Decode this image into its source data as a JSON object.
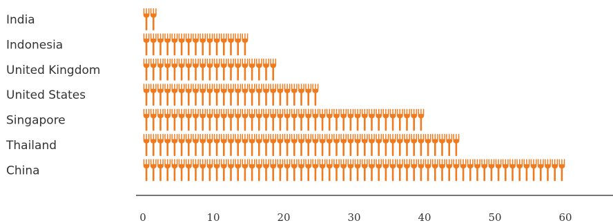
{
  "chart_data": {
    "type": "bar",
    "icon": "fork-icon",
    "categories": [
      "India",
      "Indonesia",
      "United Kingdom",
      "United States",
      "Singapore",
      "Thailand",
      "China"
    ],
    "values": [
      2,
      15,
      19,
      25,
      40,
      45,
      60
    ],
    "xlim": [
      0,
      66
    ],
    "xticks": [
      "0",
      "10",
      "20",
      "30",
      "40",
      "50",
      "60"
    ],
    "xtick_values": [
      0,
      10,
      20,
      30,
      40,
      50,
      60
    ],
    "grid": false,
    "legend": "none",
    "colors": {
      "icon": "#f07a1e",
      "text": "#333333",
      "axis": "#222222"
    }
  }
}
